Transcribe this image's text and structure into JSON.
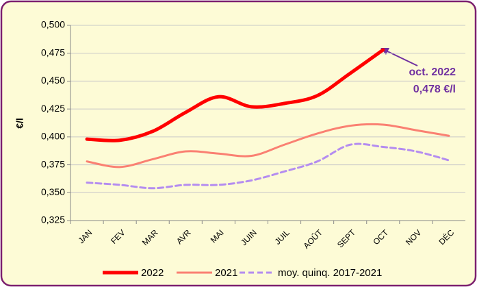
{
  "chart_data": {
    "type": "line",
    "y_label": "€/l",
    "annotation": [
      "oct. 2022",
      "0,478 €/l"
    ],
    "categories": [
      "JAN",
      "FEV",
      "MAR",
      "AVR",
      "MAI",
      "JUIN",
      "JUIL",
      "AOÛT",
      "SEPT",
      "OCT",
      "NOV",
      "DÉC"
    ],
    "series": [
      {
        "name": "2022",
        "color": "#ff0000",
        "values": [
          0.398,
          0.397,
          0.405,
          0.422,
          0.436,
          0.427,
          0.43,
          0.437,
          0.457,
          0.478,
          null,
          null
        ]
      },
      {
        "name": "2021",
        "color": "#fa8072",
        "values": [
          0.378,
          0.373,
          0.38,
          0.387,
          0.385,
          0.383,
          0.393,
          0.403,
          0.41,
          0.411,
          0.406,
          0.401
        ]
      },
      {
        "name": "moy. quinq. 2017-2021",
        "color": "#b48cf0",
        "dashed": true,
        "values": [
          0.359,
          0.357,
          0.354,
          0.357,
          0.357,
          0.361,
          0.369,
          0.378,
          0.393,
          0.391,
          0.387,
          0.379
        ]
      }
    ],
    "ylim": [
      0.325,
      0.5
    ],
    "yticks": [
      {
        "value": 0.325,
        "label": "0,325"
      },
      {
        "value": 0.35,
        "label": "0,350"
      },
      {
        "value": 0.375,
        "label": "0,375"
      },
      {
        "value": 0.4,
        "label": "0,400"
      },
      {
        "value": 0.425,
        "label": "0,425"
      },
      {
        "value": 0.45,
        "label": "0,450"
      },
      {
        "value": 0.475,
        "label": "0,475"
      },
      {
        "value": 0.5,
        "label": "0,500"
      }
    ],
    "grid": true
  }
}
